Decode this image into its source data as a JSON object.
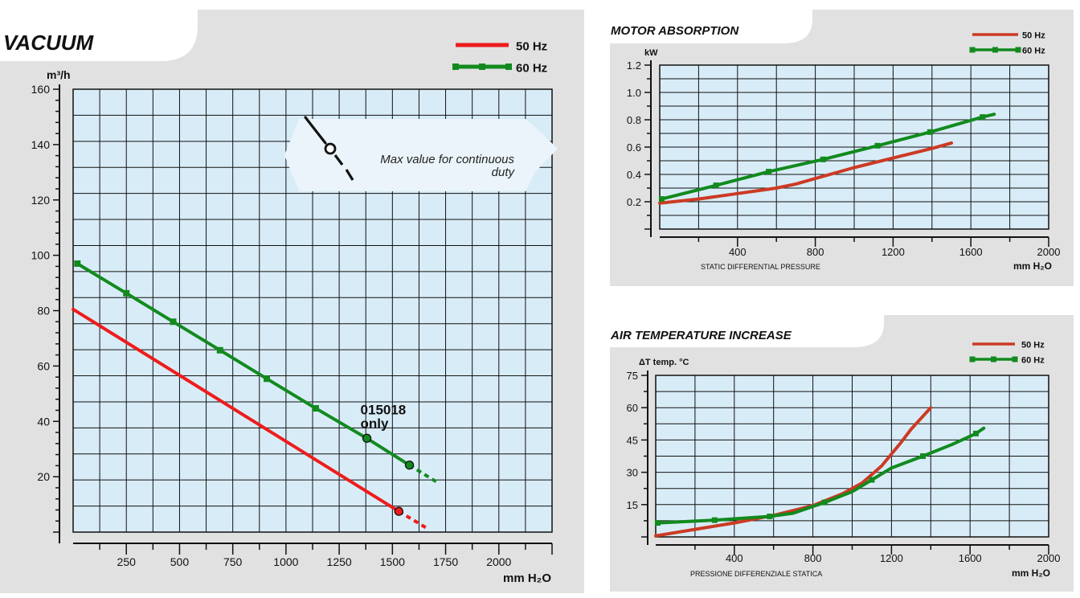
{
  "chart_data": [
    {
      "id": "vacuum",
      "type": "line",
      "title": "VACUUM",
      "ylabel": "m³/h",
      "xlabel": "mm H₂O",
      "xlim": [
        0,
        2250
      ],
      "ylim": [
        0,
        160
      ],
      "xticks": [
        250,
        500,
        750,
        1000,
        1250,
        1500,
        1750,
        2000
      ],
      "yticks": [
        20,
        40,
        60,
        80,
        100,
        120,
        140,
        160
      ],
      "grid": true,
      "legend": "top-right",
      "series": [
        {
          "name": "50 Hz",
          "color": "#ee1c1c",
          "points": [
            [
              0,
              80.5
            ],
            [
              1530,
              7.5
            ]
          ],
          "dashed": [
            [
              1530,
              7.5
            ],
            [
              1660,
              1.5
            ]
          ],
          "endpoint": [
            1530,
            7.5
          ]
        },
        {
          "name": "60 Hz",
          "color": "#128a1e",
          "points": [
            [
              20,
              97
            ],
            [
              250,
              86.3
            ],
            [
              470,
              76
            ],
            [
              690,
              65.7
            ],
            [
              910,
              55.4
            ],
            [
              1140,
              44.7
            ],
            [
              1380,
              33.9
            ],
            [
              1580,
              24.2
            ]
          ],
          "dashed": [
            [
              1580,
              24.2
            ],
            [
              1710,
              18
            ]
          ],
          "markers": [
            [
              20,
              97
            ],
            [
              250,
              86.3
            ],
            [
              470,
              76
            ],
            [
              690,
              65.7
            ],
            [
              910,
              55.4
            ],
            [
              1140,
              44.7
            ]
          ],
          "endpoints": [
            [
              1380,
              33.9
            ],
            [
              1580,
              24.2
            ]
          ]
        }
      ],
      "annotations": [
        {
          "text": "015018",
          "at": [
            1380,
            33.9
          ]
        },
        {
          "text": "only",
          "at": [
            1380,
            33.9
          ]
        }
      ],
      "callout_lines": [
        "Max value for continuous",
        "duty"
      ]
    },
    {
      "id": "motor",
      "type": "line",
      "title": "MOTOR ABSORPTION",
      "ylabel": "kW",
      "xlabel": "mm H₂O",
      "caption": "STATIC DIFFERENTIAL PRESSURE",
      "xlim": [
        0,
        2000
      ],
      "ylim": [
        0,
        1.2
      ],
      "xticks": [
        400,
        800,
        1200,
        1600,
        2000
      ],
      "yticks": [
        "0.2",
        "0.4",
        "0.6",
        "0.8",
        "1.0",
        "1.2"
      ],
      "grid": true,
      "legend": "top-right",
      "series": [
        {
          "name": "50 Hz",
          "color": "#cc3a24",
          "points": [
            [
              0,
              0.19
            ],
            [
              200,
              0.22
            ],
            [
              400,
              0.26
            ],
            [
              600,
              0.3
            ],
            [
              700,
              0.33
            ],
            [
              800,
              0.37
            ],
            [
              1000,
              0.45
            ],
            [
              1200,
              0.52
            ],
            [
              1400,
              0.59
            ],
            [
              1500,
              0.63
            ]
          ]
        },
        {
          "name": "60 Hz",
          "color": "#128a1e",
          "points": [
            [
              10,
              0.22
            ],
            [
              290,
              0.32
            ],
            [
              560,
              0.42
            ],
            [
              840,
              0.51
            ],
            [
              1120,
              0.61
            ],
            [
              1390,
              0.71
            ],
            [
              1660,
              0.82
            ],
            [
              1720,
              0.84
            ]
          ],
          "markers": [
            [
              10,
              0.22
            ],
            [
              290,
              0.32
            ],
            [
              560,
              0.42
            ],
            [
              840,
              0.51
            ],
            [
              1120,
              0.61
            ],
            [
              1390,
              0.71
            ],
            [
              1660,
              0.82
            ]
          ]
        }
      ]
    },
    {
      "id": "temp",
      "type": "line",
      "title": "AIR TEMPERATURE INCREASE",
      "ylabel": "ΔT  temp. °C",
      "xlabel": "mm H₂O",
      "caption": "PRESSIONE DIFFERENZIALE STATICA",
      "xlim": [
        0,
        2000
      ],
      "ylim": [
        0,
        75
      ],
      "xticks": [
        400,
        800,
        1200,
        1600,
        2000
      ],
      "yticks": [
        15,
        30,
        45,
        60,
        75
      ],
      "grid": true,
      "legend": "top-right",
      "series": [
        {
          "name": "50 Hz",
          "color": "#cc3a24",
          "points": [
            [
              0,
              0.5
            ],
            [
              200,
              3.5
            ],
            [
              400,
              6.5
            ],
            [
              600,
              10
            ],
            [
              800,
              14.5
            ],
            [
              950,
              20
            ],
            [
              1050,
              25
            ],
            [
              1150,
              33
            ],
            [
              1250,
              44
            ],
            [
              1300,
              50
            ],
            [
              1400,
              60
            ]
          ]
        },
        {
          "name": "60 Hz",
          "color": "#128a1e",
          "points": [
            [
              10,
              6.5
            ],
            [
              300,
              7.8
            ],
            [
              580,
              9.5
            ],
            [
              700,
              11
            ],
            [
              860,
              16
            ],
            [
              1000,
              21
            ],
            [
              1100,
              26.5
            ],
            [
              1200,
              32
            ],
            [
              1360,
              37.5
            ],
            [
              1510,
              43
            ],
            [
              1630,
              48
            ],
            [
              1670,
              50.5
            ]
          ],
          "markers": [
            [
              10,
              6.5
            ],
            [
              300,
              7.8
            ],
            [
              580,
              9.5
            ],
            [
              860,
              16
            ],
            [
              1100,
              26.5
            ],
            [
              1360,
              37.5
            ],
            [
              1630,
              48
            ]
          ]
        }
      ]
    }
  ]
}
